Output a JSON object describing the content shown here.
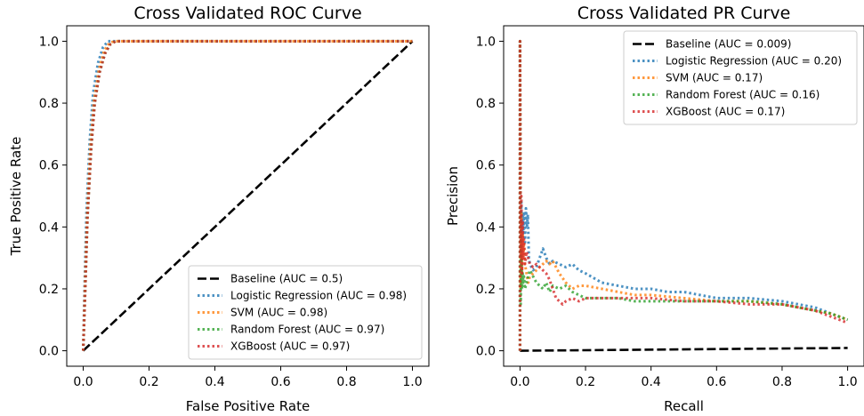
{
  "chart_data": [
    {
      "type": "line",
      "title": "Cross Validated ROC Curve",
      "xlabel": "False Positive Rate",
      "ylabel": "True Positive Rate",
      "xlim": [
        -0.05,
        1.05
      ],
      "ylim": [
        -0.05,
        1.05
      ],
      "xticks": [
        "0.0",
        "0.2",
        "0.4",
        "0.6",
        "0.8",
        "1.0"
      ],
      "yticks": [
        "0.0",
        "0.2",
        "0.4",
        "0.6",
        "0.8",
        "1.0"
      ],
      "grid": false,
      "legend_position": "lower-right",
      "series": [
        {
          "name": "Baseline (AUC = 0.5)",
          "color": "#000000",
          "style": "dashed",
          "x": [
            0,
            1
          ],
          "y": [
            0,
            1
          ]
        },
        {
          "name": "Logistic Regression (AUC = 0.98)",
          "color": "#1f77b4",
          "style": "dotted",
          "x": [
            0,
            0.004,
            0.01,
            0.02,
            0.03,
            0.045,
            0.06,
            0.075,
            0.09,
            0.2,
            0.5,
            0.8,
            1.0
          ],
          "y": [
            0,
            0.2,
            0.45,
            0.68,
            0.83,
            0.93,
            0.98,
            1.0,
            1.0,
            1.0,
            1.0,
            1.0,
            1.0
          ]
        },
        {
          "name": "SVM (AUC = 0.98)",
          "color": "#ff7f0e",
          "style": "dotted",
          "x": [
            0,
            0.005,
            0.012,
            0.022,
            0.033,
            0.048,
            0.064,
            0.08,
            0.095,
            0.2,
            0.5,
            0.8,
            1.0
          ],
          "y": [
            0,
            0.2,
            0.44,
            0.66,
            0.81,
            0.91,
            0.97,
            0.995,
            1.0,
            1.0,
            1.0,
            1.0,
            1.0
          ]
        },
        {
          "name": "Random Forest (AUC = 0.97)",
          "color": "#2ca02c",
          "style": "dotted",
          "x": [
            0,
            0.006,
            0.013,
            0.024,
            0.035,
            0.05,
            0.066,
            0.082,
            0.098,
            0.2,
            0.5,
            0.8,
            1.0
          ],
          "y": [
            0,
            0.19,
            0.43,
            0.65,
            0.8,
            0.9,
            0.96,
            0.99,
            1.0,
            1.0,
            1.0,
            1.0,
            1.0
          ]
        },
        {
          "name": "XGBoost (AUC = 0.97)",
          "color": "#d62728",
          "style": "dotted",
          "x": [
            0,
            0.006,
            0.013,
            0.024,
            0.035,
            0.05,
            0.066,
            0.082,
            0.098,
            0.2,
            0.5,
            0.8,
            1.0
          ],
          "y": [
            0,
            0.19,
            0.43,
            0.65,
            0.8,
            0.9,
            0.96,
            0.99,
            1.0,
            1.0,
            1.0,
            1.0,
            1.0
          ]
        }
      ]
    },
    {
      "type": "line",
      "title": "Cross Validated PR Curve",
      "xlabel": "Recall",
      "ylabel": "Precision",
      "xlim": [
        -0.05,
        1.05
      ],
      "ylim": [
        -0.05,
        1.05
      ],
      "xticks": [
        "0.0",
        "0.2",
        "0.4",
        "0.6",
        "0.8",
        "1.0"
      ],
      "yticks": [
        "0.0",
        "0.2",
        "0.4",
        "0.6",
        "0.8",
        "1.0"
      ],
      "grid": false,
      "legend_position": "upper-right",
      "series": [
        {
          "name": "Baseline (AUC = 0.009)",
          "color": "#000000",
          "style": "dashed",
          "x": [
            0,
            1
          ],
          "y": [
            0,
            0.009
          ]
        },
        {
          "name": "Logistic Regression (AUC = 0.20)",
          "color": "#1f77b4",
          "style": "dotted",
          "x": [
            0,
            0,
            0.002,
            0.004,
            0.006,
            0.008,
            0.01,
            0.012,
            0.015,
            0.018,
            0.021,
            0.024,
            0.027,
            0.03,
            0.035,
            0.04,
            0.05,
            0.06,
            0.07,
            0.08,
            0.09,
            0.1,
            0.12,
            0.14,
            0.16,
            0.18,
            0.2,
            0.25,
            0.3,
            0.35,
            0.4,
            0.45,
            0.5,
            0.6,
            0.7,
            0.8,
            0.85,
            0.9,
            0.95,
            1.0
          ],
          "y": [
            0,
            1.0,
            0.25,
            0.48,
            0.3,
            0.44,
            0.38,
            0.45,
            0.35,
            0.46,
            0.4,
            0.44,
            0.3,
            0.28,
            0.27,
            0.26,
            0.27,
            0.3,
            0.33,
            0.3,
            0.28,
            0.29,
            0.28,
            0.27,
            0.28,
            0.26,
            0.25,
            0.22,
            0.21,
            0.2,
            0.2,
            0.19,
            0.19,
            0.17,
            0.17,
            0.16,
            0.15,
            0.14,
            0.12,
            0.1
          ]
        },
        {
          "name": "SVM (AUC = 0.17)",
          "color": "#ff7f0e",
          "style": "dotted",
          "x": [
            0,
            0,
            0.002,
            0.004,
            0.006,
            0.008,
            0.01,
            0.012,
            0.015,
            0.02,
            0.025,
            0.03,
            0.04,
            0.05,
            0.06,
            0.07,
            0.08,
            0.09,
            0.1,
            0.11,
            0.12,
            0.14,
            0.16,
            0.18,
            0.2,
            0.25,
            0.3,
            0.35,
            0.4,
            0.5,
            0.6,
            0.7,
            0.8,
            0.85,
            0.9,
            0.95,
            1.0
          ],
          "y": [
            0,
            1.0,
            0.2,
            0.45,
            0.25,
            0.38,
            0.3,
            0.35,
            0.28,
            0.25,
            0.22,
            0.24,
            0.25,
            0.26,
            0.27,
            0.28,
            0.29,
            0.28,
            0.29,
            0.27,
            0.25,
            0.22,
            0.2,
            0.21,
            0.21,
            0.2,
            0.19,
            0.18,
            0.18,
            0.17,
            0.16,
            0.16,
            0.15,
            0.14,
            0.13,
            0.12,
            0.1
          ]
        },
        {
          "name": "Random Forest (AUC = 0.16)",
          "color": "#2ca02c",
          "style": "dotted",
          "x": [
            0,
            0,
            0.002,
            0.004,
            0.006,
            0.008,
            0.01,
            0.012,
            0.015,
            0.02,
            0.025,
            0.03,
            0.04,
            0.05,
            0.06,
            0.07,
            0.08,
            0.09,
            0.1,
            0.12,
            0.14,
            0.16,
            0.18,
            0.2,
            0.25,
            0.3,
            0.35,
            0.4,
            0.5,
            0.6,
            0.7,
            0.8,
            0.85,
            0.9,
            0.95,
            1.0
          ],
          "y": [
            0,
            1.0,
            0.15,
            0.3,
            0.2,
            0.25,
            0.22,
            0.24,
            0.2,
            0.22,
            0.24,
            0.26,
            0.24,
            0.22,
            0.21,
            0.2,
            0.22,
            0.19,
            0.21,
            0.2,
            0.21,
            0.19,
            0.18,
            0.17,
            0.17,
            0.17,
            0.16,
            0.16,
            0.16,
            0.16,
            0.16,
            0.15,
            0.14,
            0.13,
            0.12,
            0.1
          ]
        },
        {
          "name": "XGBoost (AUC = 0.17)",
          "color": "#d62728",
          "style": "dotted",
          "x": [
            0,
            0,
            0.002,
            0.004,
            0.006,
            0.008,
            0.01,
            0.012,
            0.015,
            0.02,
            0.025,
            0.03,
            0.04,
            0.05,
            0.06,
            0.07,
            0.08,
            0.09,
            0.1,
            0.11,
            0.12,
            0.13,
            0.14,
            0.16,
            0.18,
            0.2,
            0.25,
            0.3,
            0.35,
            0.4,
            0.5,
            0.6,
            0.7,
            0.8,
            0.85,
            0.9,
            0.95,
            1.0
          ],
          "y": [
            0,
            1.0,
            0.3,
            0.5,
            0.25,
            0.42,
            0.3,
            0.36,
            0.28,
            0.32,
            0.3,
            0.28,
            0.27,
            0.28,
            0.27,
            0.26,
            0.25,
            0.23,
            0.2,
            0.17,
            0.16,
            0.15,
            0.16,
            0.17,
            0.16,
            0.17,
            0.17,
            0.17,
            0.17,
            0.17,
            0.16,
            0.16,
            0.15,
            0.15,
            0.14,
            0.13,
            0.11,
            0.09
          ]
        }
      ]
    }
  ]
}
